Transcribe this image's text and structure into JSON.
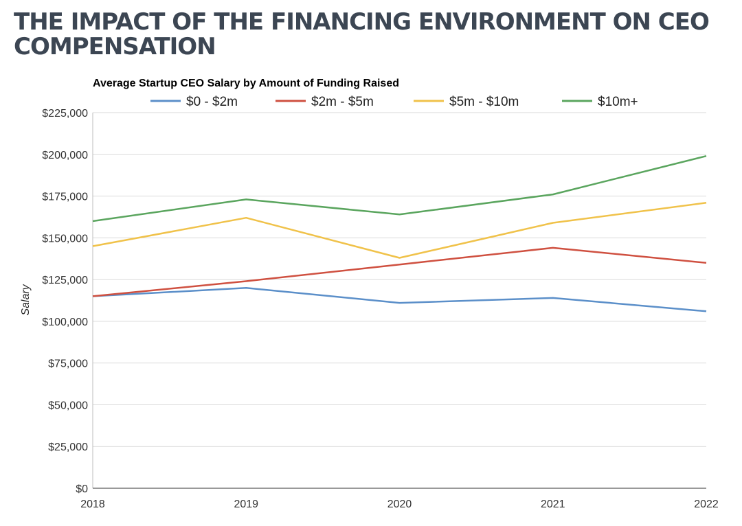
{
  "page": {
    "title": "THE IMPACT OF THE FINANCING ENVIRONMENT ON CEO COMPENSATION"
  },
  "chart_data": {
    "type": "line",
    "title": "Average Startup CEO Salary by Amount of Funding Raised",
    "xlabel": "",
    "ylabel": "Salary",
    "x": [
      "2018",
      "2019",
      "2020",
      "2021",
      "2022"
    ],
    "ylim": [
      0,
      225000
    ],
    "yticks": [
      0,
      25000,
      50000,
      75000,
      100000,
      125000,
      150000,
      175000,
      200000,
      225000
    ],
    "ytick_labels": [
      "$0",
      "$25,000",
      "$50,000",
      "$75,000",
      "$100,000",
      "$125,000",
      "$150,000",
      "$175,000",
      "$200,000",
      "$225,000"
    ],
    "grid": true,
    "legend_position": "top",
    "series": [
      {
        "name": "$0 - $2m",
        "color": "#5b8fc9",
        "values": [
          115000,
          120000,
          111000,
          114000,
          106000
        ]
      },
      {
        "name": "$2m - $5m",
        "color": "#cf5040",
        "values": [
          115000,
          124000,
          134000,
          144000,
          135000
        ]
      },
      {
        "name": "$5m - $10m",
        "color": "#f0c24a",
        "values": [
          145000,
          162000,
          138000,
          159000,
          171000
        ]
      },
      {
        "name": "$10m+",
        "color": "#5aa55e",
        "values": [
          160000,
          173000,
          164000,
          176000,
          199000
        ]
      }
    ]
  }
}
